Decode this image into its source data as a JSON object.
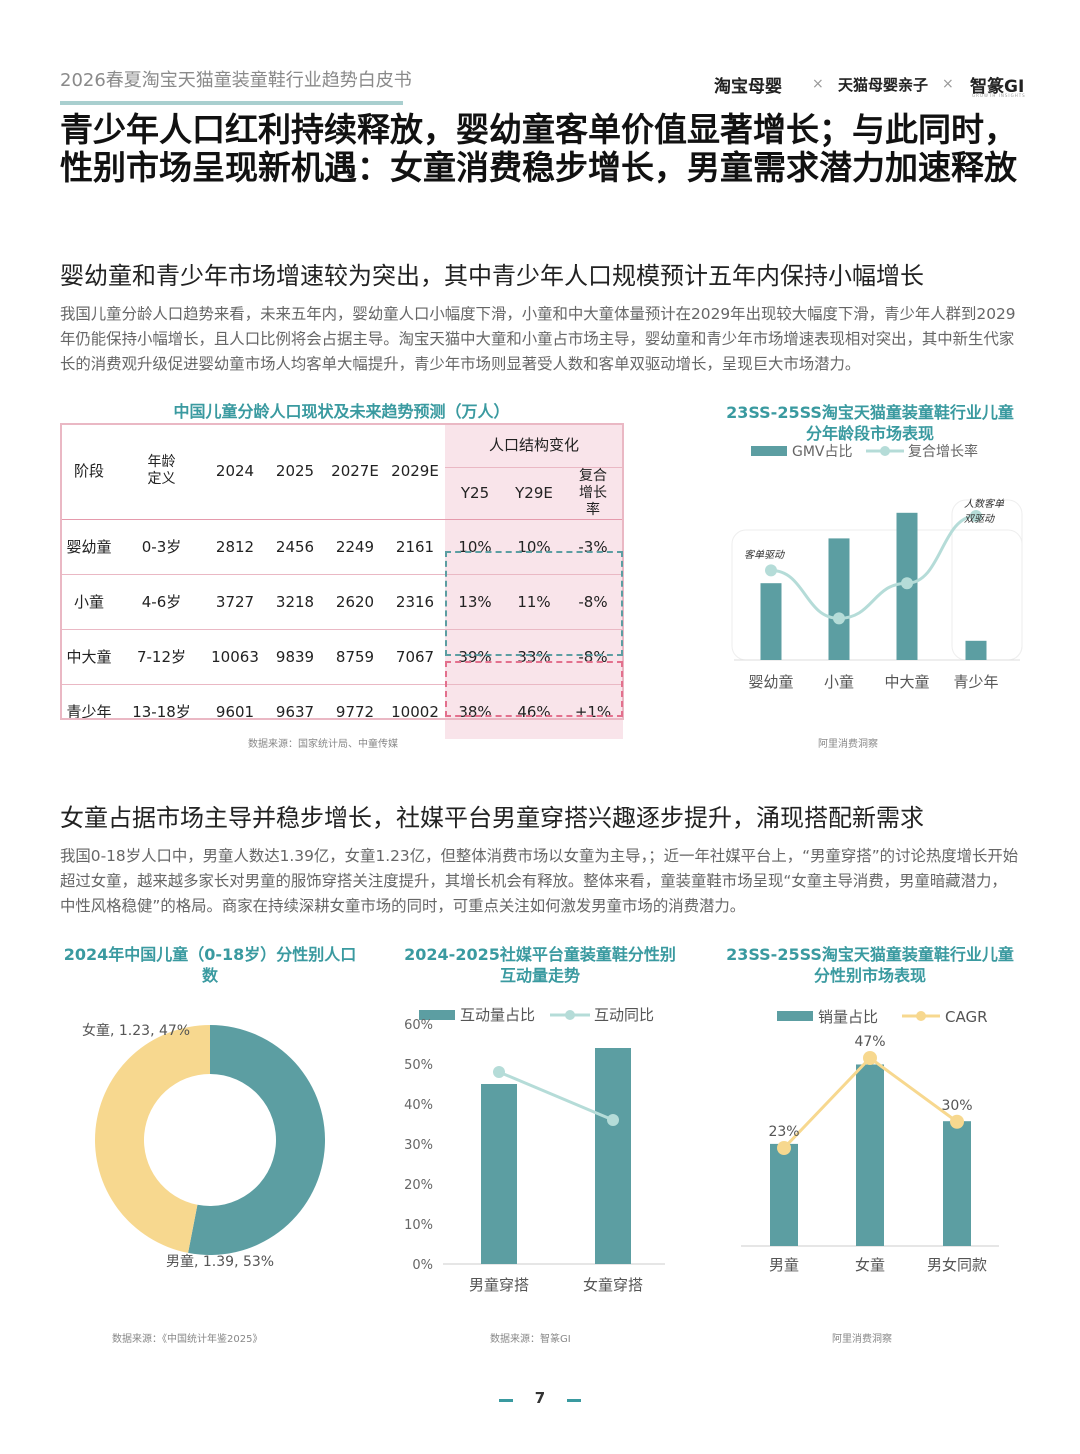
{
  "header": {
    "report_title": "2026春夏淘宝天猫童装童鞋行业趋势白皮书",
    "logos": [
      "淘宝母婴",
      "天猫母婴亲子",
      "智篆GI"
    ],
    "logo_sub": "GROWTH INSIGHTS",
    "separator": "×"
  },
  "main_title": "青少年人口红利持续释放，婴幼童客单价值显著增长；与此同时，性别市场呈现新机遇：女童消费稳步增长，男童需求潜力加速释放",
  "section1": {
    "subtitle": "婴幼童和青少年市场增速较为突出，其中青少年人口规模预计五年内保持小幅增长",
    "paragraph": "我国儿童分龄人口趋势来看，未来五年内，婴幼童人口小幅度下滑，小童和中大童体量预计在2029年出现较大幅度下滑，青少年人群到2029年仍能保持小幅增长，且人口比例将会占据主导。淘宝天猫中大童和小童占市场主导，婴幼童和青少年市场增速表现相对突出，其中新生代家长的消费观升级促进婴幼童市场人均客单大幅提升，青少年市场则显著受人数和客单双驱动增长，呈现巨大市场潜力。",
    "table": {
      "title": "中国儿童分龄人口现状及未来趋势预测（万人）",
      "headers": {
        "stage": "阶段",
        "age": "年龄定义",
        "y2024": "2024",
        "y2025": "2025",
        "y2027": "2027E",
        "y2029": "2029E",
        "group": "人口结构变化",
        "y25": "Y25",
        "y29": "Y29E",
        "cagr": "复合增长率"
      },
      "rows": [
        {
          "stage": "婴幼童",
          "age": "0-3岁",
          "v2024": "2812",
          "v2025": "2456",
          "v2027": "2249",
          "v2029": "2161",
          "y25": "10%",
          "y29": "10%",
          "cagr": "-3%"
        },
        {
          "stage": "小童",
          "age": "4-6岁",
          "v2024": "3727",
          "v2025": "3218",
          "v2027": "2620",
          "v2029": "2316",
          "y25": "13%",
          "y29": "11%",
          "cagr": "-8%"
        },
        {
          "stage": "中大童",
          "age": "7-12岁",
          "v2024": "10063",
          "v2025": "9839",
          "v2027": "8759",
          "v2029": "7067",
          "y25": "39%",
          "y29": "33%",
          "cagr": "-8%"
        },
        {
          "stage": "青少年",
          "age": "13-18岁",
          "v2024": "9601",
          "v2025": "9637",
          "v2027": "9772",
          "v2029": "10002",
          "y25": "38%",
          "y29": "46%",
          "cagr": "+1%"
        }
      ],
      "source": "数据来源：国家统计局、中童传媒"
    },
    "age_chart_source": "阿里消费洞察"
  },
  "section2": {
    "subtitle": "女童占据市场主导并稳步增长，社媒平台男童穿搭兴趣逐步提升，涌现搭配新需求",
    "paragraph": "我国0-18岁人口中，男童人数达1.39亿，女童1.23亿，但整体消费市场以女童为主导，；近一年社媒平台上，“男童穿搭”的讨论热度增长开始超过女童，越来越多家长对男童的服饰穿搭关注度提升，其增长机会有释放。整体来看，童装童鞋市场呈现“女童主导消费，男童暗藏潜力，中性风格稳健”的格局。商家在持续深耕女童市场的同时，可重点关注如何激发男童市场的消费潜力。",
    "sources": {
      "pie": "数据来源：《中国统计年鉴2025》",
      "social": "数据来源：智篆GI",
      "gender": "阿里消费洞察"
    }
  },
  "chart_data": [
    {
      "type": "bar",
      "title": "23SS-25SS淘宝天猫童装童鞋行业儿童分年龄段市场表现",
      "categories": [
        "婴幼童",
        "小童",
        "中大童",
        "青少年"
      ],
      "series": [
        {
          "name": "GMV占比",
          "kind": "bar",
          "values": [
            24,
            38,
            46,
            6
          ]
        },
        {
          "name": "复合增长率",
          "kind": "line",
          "values": [
            28,
            13,
            24,
            45
          ]
        }
      ],
      "y_range": [
        0,
        50
      ],
      "annotations": [
        {
          "text": "客单驱动",
          "category": "婴幼童"
        },
        {
          "text": "人数客单双驱动",
          "category": "青少年"
        }
      ],
      "axis_labels_hidden": true
    },
    {
      "type": "pie",
      "donut": true,
      "title": "2024年中国儿童（0-18岁）分性别人口数",
      "unit": "亿",
      "slices": [
        {
          "label": "男童",
          "value": 1.39,
          "pct": 53,
          "color": "#5c9ea2",
          "text": "男童, 1.39, 53%"
        },
        {
          "label": "女童",
          "value": 1.23,
          "pct": 47,
          "color": "#f7d88f",
          "text": "女童, 1.23, 47%"
        }
      ]
    },
    {
      "type": "bar",
      "title": "2024-2025社媒平台童装童鞋分性别互动量走势",
      "categories": [
        "男童穿搭",
        "女童穿搭"
      ],
      "series": [
        {
          "name": "互动量占比",
          "kind": "bar",
          "values": [
            45,
            54
          ]
        },
        {
          "name": "互动同比",
          "kind": "line",
          "values": [
            48,
            36
          ]
        }
      ],
      "ylim": [
        0,
        60
      ],
      "yticks": [
        "0%",
        "10%",
        "20%",
        "30%",
        "40%",
        "50%",
        "60%"
      ]
    },
    {
      "type": "bar",
      "title": "23SS-25SS淘宝天猫童装童鞋行业儿童分性别市场表现",
      "categories": [
        "男童",
        "女童",
        "男女同款"
      ],
      "series": [
        {
          "name": "销量占比",
          "kind": "bar",
          "values": [
            27,
            48,
            33
          ]
        },
        {
          "name": "CAGR",
          "kind": "line",
          "values": [
            23,
            47,
            30
          ],
          "labels": [
            "23%",
            "47%",
            "30%"
          ]
        }
      ],
      "ylim": [
        0,
        55
      ],
      "axis_labels_hidden": true
    }
  ],
  "page_number": "7",
  "colors": {
    "teal": "#5c9ea2",
    "teal_title": "#3a9aa0",
    "yellow": "#f7d88f",
    "line_light": "#b5dcd8",
    "pink_bg": "#f9e4ea",
    "pink_border": "#e3708d"
  }
}
